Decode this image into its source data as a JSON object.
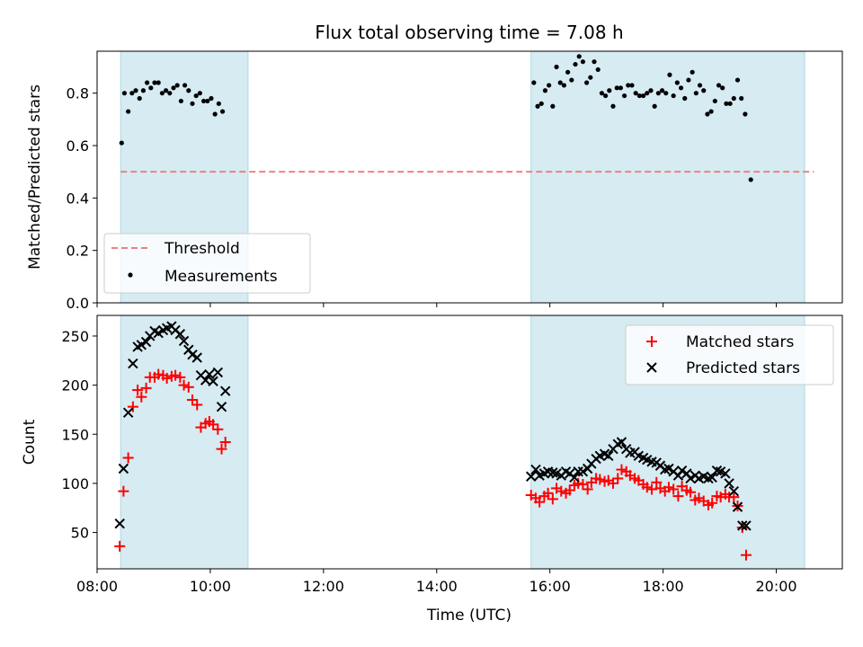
{
  "chart_data": [
    {
      "type": "scatter",
      "title": "Flux total observing time = 7.08 h",
      "ylabel": "Matched/Predicted stars",
      "ylim": [
        0,
        0.96
      ],
      "xlim": [
        "08:00",
        "21:10"
      ],
      "yticks": [
        "0.0",
        "0.2",
        "0.4",
        "0.6",
        "0.8"
      ],
      "legend_position": "lower-left",
      "shaded_spans": [
        [
          "08:25",
          "10:40"
        ],
        [
          "15:40",
          "20:30"
        ]
      ],
      "threshold": {
        "name": "Threshold",
        "value": 0.5,
        "x_range": [
          "08:25",
          "20:40"
        ],
        "color": "#f08080"
      },
      "series": [
        {
          "name": "Measurements",
          "color": "#000000",
          "points": [
            [
              "08:26",
              0.61
            ],
            [
              "08:29",
              0.8
            ],
            [
              "08:33",
              0.73
            ],
            [
              "08:37",
              0.8
            ],
            [
              "08:41",
              0.81
            ],
            [
              "08:45",
              0.78
            ],
            [
              "08:49",
              0.81
            ],
            [
              "08:53",
              0.84
            ],
            [
              "08:57",
              0.82
            ],
            [
              "09:01",
              0.84
            ],
            [
              "09:05",
              0.84
            ],
            [
              "09:09",
              0.8
            ],
            [
              "09:13",
              0.81
            ],
            [
              "09:17",
              0.8
            ],
            [
              "09:21",
              0.82
            ],
            [
              "09:25",
              0.83
            ],
            [
              "09:29",
              0.77
            ],
            [
              "09:33",
              0.83
            ],
            [
              "09:37",
              0.81
            ],
            [
              "09:41",
              0.76
            ],
            [
              "09:45",
              0.79
            ],
            [
              "09:49",
              0.8
            ],
            [
              "09:53",
              0.77
            ],
            [
              "09:57",
              0.77
            ],
            [
              "10:01",
              0.78
            ],
            [
              "10:05",
              0.72
            ],
            [
              "10:09",
              0.76
            ],
            [
              "10:13",
              0.73
            ],
            [
              "15:43",
              0.84
            ],
            [
              "15:47",
              0.75
            ],
            [
              "15:51",
              0.76
            ],
            [
              "15:55",
              0.81
            ],
            [
              "15:59",
              0.83
            ],
            [
              "16:03",
              0.75
            ],
            [
              "16:07",
              0.9
            ],
            [
              "16:11",
              0.84
            ],
            [
              "16:15",
              0.83
            ],
            [
              "16:19",
              0.88
            ],
            [
              "16:23",
              0.85
            ],
            [
              "16:27",
              0.91
            ],
            [
              "16:31",
              0.94
            ],
            [
              "16:35",
              0.92
            ],
            [
              "16:39",
              0.84
            ],
            [
              "16:43",
              0.86
            ],
            [
              "16:47",
              0.92
            ],
            [
              "16:51",
              0.89
            ],
            [
              "16:55",
              0.8
            ],
            [
              "16:59",
              0.79
            ],
            [
              "17:03",
              0.81
            ],
            [
              "17:07",
              0.75
            ],
            [
              "17:11",
              0.82
            ],
            [
              "17:15",
              0.82
            ],
            [
              "17:19",
              0.79
            ],
            [
              "17:23",
              0.83
            ],
            [
              "17:27",
              0.83
            ],
            [
              "17:31",
              0.8
            ],
            [
              "17:35",
              0.79
            ],
            [
              "17:39",
              0.79
            ],
            [
              "17:43",
              0.8
            ],
            [
              "17:47",
              0.81
            ],
            [
              "17:51",
              0.75
            ],
            [
              "17:55",
              0.8
            ],
            [
              "17:59",
              0.81
            ],
            [
              "18:03",
              0.8
            ],
            [
              "18:07",
              0.87
            ],
            [
              "18:11",
              0.79
            ],
            [
              "18:15",
              0.84
            ],
            [
              "18:19",
              0.82
            ],
            [
              "18:23",
              0.78
            ],
            [
              "18:27",
              0.85
            ],
            [
              "18:31",
              0.88
            ],
            [
              "18:35",
              0.8
            ],
            [
              "18:39",
              0.83
            ],
            [
              "18:43",
              0.81
            ],
            [
              "18:47",
              0.72
            ],
            [
              "18:51",
              0.73
            ],
            [
              "18:55",
              0.77
            ],
            [
              "18:59",
              0.83
            ],
            [
              "19:03",
              0.82
            ],
            [
              "19:07",
              0.76
            ],
            [
              "19:11",
              0.76
            ],
            [
              "19:15",
              0.78
            ],
            [
              "19:19",
              0.85
            ],
            [
              "19:23",
              0.78
            ],
            [
              "19:27",
              0.72
            ],
            [
              "19:33",
              0.47
            ]
          ]
        }
      ]
    },
    {
      "type": "scatter",
      "xlabel": "Time (UTC)",
      "ylabel": "Count",
      "ylim": [
        13,
        271
      ],
      "xlim": [
        "08:00",
        "21:10"
      ],
      "xticks": [
        "08:00",
        "10:00",
        "12:00",
        "14:00",
        "16:00",
        "18:00",
        "20:00"
      ],
      "yticks": [
        "50",
        "100",
        "150",
        "200",
        "250"
      ],
      "legend_position": "upper-right",
      "shaded_spans": [
        [
          "08:25",
          "10:40"
        ],
        [
          "15:40",
          "20:30"
        ]
      ],
      "series": [
        {
          "name": "Matched stars",
          "marker": "plus",
          "color": "#ff0000",
          "points": [
            [
              "08:24",
              36
            ],
            [
              "08:28",
              92
            ],
            [
              "08:33",
              126
            ],
            [
              "08:38",
              178
            ],
            [
              "08:43",
              195
            ],
            [
              "08:47",
              188
            ],
            [
              "08:52",
              197
            ],
            [
              "08:56",
              208
            ],
            [
              "09:01",
              208
            ],
            [
              "09:05",
              211
            ],
            [
              "09:10",
              210
            ],
            [
              "09:14",
              207
            ],
            [
              "09:19",
              209
            ],
            [
              "09:23",
              210
            ],
            [
              "09:28",
              208
            ],
            [
              "09:32",
              200
            ],
            [
              "09:37",
              198
            ],
            [
              "09:41",
              185
            ],
            [
              "09:46",
              180
            ],
            [
              "09:50",
              157
            ],
            [
              "09:55",
              161
            ],
            [
              "09:59",
              163
            ],
            [
              "10:03",
              160
            ],
            [
              "10:08",
              155
            ],
            [
              "10:12",
              135
            ],
            [
              "10:16",
              142
            ],
            [
              "15:40",
              88
            ],
            [
              "15:45",
              85
            ],
            [
              "15:49",
              81
            ],
            [
              "15:54",
              87
            ],
            [
              "15:58",
              90
            ],
            [
              "16:03",
              84
            ],
            [
              "16:07",
              95
            ],
            [
              "16:12",
              92
            ],
            [
              "16:17",
              90
            ],
            [
              "16:21",
              93
            ],
            [
              "16:26",
              98
            ],
            [
              "16:30",
              100
            ],
            [
              "16:35",
              99
            ],
            [
              "16:40",
              94
            ],
            [
              "16:44",
              101
            ],
            [
              "16:49",
              105
            ],
            [
              "16:53",
              104
            ],
            [
              "16:58",
              102
            ],
            [
              "17:02",
              103
            ],
            [
              "17:07",
              100
            ],
            [
              "17:12",
              105
            ],
            [
              "17:16",
              114
            ],
            [
              "17:21",
              112
            ],
            [
              "17:25",
              108
            ],
            [
              "17:30",
              105
            ],
            [
              "17:34",
              103
            ],
            [
              "17:39",
              99
            ],
            [
              "17:43",
              96
            ],
            [
              "17:48",
              94
            ],
            [
              "17:53",
              101
            ],
            [
              "17:57",
              95
            ],
            [
              "18:02",
              92
            ],
            [
              "18:06",
              96
            ],
            [
              "18:11",
              94
            ],
            [
              "18:16",
              87
            ],
            [
              "18:20",
              97
            ],
            [
              "18:25",
              93
            ],
            [
              "18:29",
              91
            ],
            [
              "18:34",
              83
            ],
            [
              "18:38",
              85
            ],
            [
              "18:43",
              82
            ],
            [
              "18:48",
              78
            ],
            [
              "18:52",
              80
            ],
            [
              "18:57",
              87
            ],
            [
              "19:01",
              86
            ],
            [
              "19:06",
              89
            ],
            [
              "19:10",
              86
            ],
            [
              "19:15",
              86
            ],
            [
              "19:19",
              77
            ],
            [
              "19:24",
              55
            ],
            [
              "19:28",
              27
            ]
          ]
        },
        {
          "name": "Predicted stars",
          "marker": "x",
          "color": "#000000",
          "points": [
            [
              "08:24",
              59
            ],
            [
              "08:28",
              115
            ],
            [
              "08:33",
              172
            ],
            [
              "08:38",
              222
            ],
            [
              "08:43",
              239
            ],
            [
              "08:47",
              241
            ],
            [
              "08:52",
              244
            ],
            [
              "08:56",
              250
            ],
            [
              "09:01",
              255
            ],
            [
              "09:05",
              253
            ],
            [
              "09:10",
              256
            ],
            [
              "09:14",
              258
            ],
            [
              "09:19",
              260
            ],
            [
              "09:23",
              256
            ],
            [
              "09:28",
              252
            ],
            [
              "09:32",
              245
            ],
            [
              "09:37",
              236
            ],
            [
              "09:41",
              231
            ],
            [
              "09:46",
              228
            ],
            [
              "09:50",
              210
            ],
            [
              "09:55",
              205
            ],
            [
              "09:59",
              211
            ],
            [
              "10:03",
              204
            ],
            [
              "10:08",
              213
            ],
            [
              "10:12",
              178
            ],
            [
              "10:16",
              194
            ],
            [
              "15:40",
              107
            ],
            [
              "15:45",
              114
            ],
            [
              "15:49",
              108
            ],
            [
              "15:54",
              110
            ],
            [
              "15:58",
              112
            ],
            [
              "16:03",
              111
            ],
            [
              "16:07",
              110
            ],
            [
              "16:12",
              108
            ],
            [
              "16:17",
              112
            ],
            [
              "16:21",
              110
            ],
            [
              "16:26",
              106
            ],
            [
              "16:30",
              112
            ],
            [
              "16:35",
              112
            ],
            [
              "16:40",
              115
            ],
            [
              "16:44",
              120
            ],
            [
              "16:49",
              125
            ],
            [
              "16:53",
              128
            ],
            [
              "16:58",
              130
            ],
            [
              "17:02",
              128
            ],
            [
              "17:07",
              135
            ],
            [
              "17:12",
              140
            ],
            [
              "17:16",
              142
            ],
            [
              "17:21",
              135
            ],
            [
              "17:25",
              131
            ],
            [
              "17:30",
              132
            ],
            [
              "17:34",
              128
            ],
            [
              "17:39",
              126
            ],
            [
              "17:43",
              124
            ],
            [
              "17:48",
              122
            ],
            [
              "17:53",
              121
            ],
            [
              "17:57",
              118
            ],
            [
              "18:02",
              114
            ],
            [
              "18:06",
              115
            ],
            [
              "18:11",
              112
            ],
            [
              "18:16",
              108
            ],
            [
              "18:20",
              113
            ],
            [
              "18:25",
              110
            ],
            [
              "18:29",
              105
            ],
            [
              "18:34",
              108
            ],
            [
              "18:38",
              105
            ],
            [
              "18:43",
              107
            ],
            [
              "18:48",
              105
            ],
            [
              "18:52",
              106
            ],
            [
              "18:57",
              113
            ],
            [
              "19:01",
              112
            ],
            [
              "19:06",
              110
            ],
            [
              "19:10",
              100
            ],
            [
              "19:15",
              92
            ],
            [
              "19:19",
              76
            ],
            [
              "19:24",
              57
            ],
            [
              "19:28",
              57
            ]
          ]
        }
      ]
    }
  ]
}
